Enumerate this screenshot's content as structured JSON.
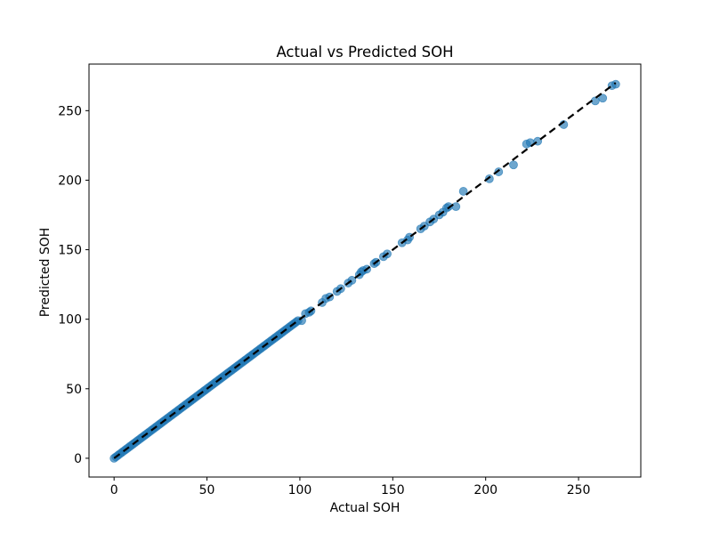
{
  "chart_data": {
    "type": "scatter",
    "title": "Actual vs Predicted SOH",
    "xlabel": "Actual SOH",
    "ylabel": "Predicted SOH",
    "xlim": [
      -13.5,
      283.5
    ],
    "ylim": [
      -13.5,
      283.5
    ],
    "xticks": [
      0,
      50,
      100,
      150,
      200,
      250
    ],
    "yticks": [
      0,
      50,
      100,
      150,
      200,
      250
    ],
    "grid": false,
    "series": [
      {
        "marker_color": "#1f77b4",
        "x": [
          0,
          1,
          2,
          3,
          4,
          5,
          6,
          7,
          8,
          9,
          10,
          11,
          12,
          13,
          14,
          15,
          16,
          17,
          18,
          19,
          20,
          21,
          22,
          23,
          24,
          25,
          26,
          27,
          28,
          29,
          30,
          31,
          32,
          33,
          34,
          35,
          36,
          37,
          38,
          39,
          40,
          41,
          42,
          43,
          44,
          45,
          46,
          47,
          48,
          49,
          50,
          51,
          52,
          53,
          54,
          55,
          56,
          57,
          58,
          59,
          60,
          61,
          62,
          63,
          64,
          65,
          66,
          67,
          68,
          69,
          70,
          71,
          72,
          73,
          74,
          75,
          76,
          77,
          78,
          79,
          80,
          81,
          82,
          83,
          84,
          85,
          86,
          87,
          88,
          89,
          90,
          91,
          92,
          93,
          94,
          95,
          96,
          97,
          98,
          99,
          101,
          103,
          105,
          106,
          112,
          114,
          116,
          120,
          122,
          126,
          128,
          132,
          133,
          134,
          136,
          140,
          141,
          145,
          147,
          155,
          158,
          159,
          165,
          167,
          170,
          172,
          175,
          177,
          179,
          180,
          184,
          188,
          202,
          207,
          215,
          222,
          224,
          228,
          242,
          259,
          263,
          268,
          270
        ],
        "y": [
          0,
          1,
          2,
          3,
          4,
          5,
          6,
          7,
          8,
          9,
          10,
          11,
          12,
          13,
          14,
          15,
          16,
          17,
          18,
          19,
          20,
          21,
          22,
          23,
          24,
          25,
          26,
          27,
          28,
          29,
          30,
          31,
          32,
          33,
          34,
          35,
          36,
          37,
          38,
          39,
          40,
          41,
          42,
          43,
          44,
          45,
          46,
          47,
          48,
          49,
          50,
          51,
          52,
          53,
          54,
          55,
          56,
          57,
          58,
          59,
          60,
          61,
          62,
          63,
          64,
          65,
          66,
          67,
          68,
          69,
          70,
          71,
          72,
          73,
          74,
          75,
          76,
          77,
          78,
          79,
          80,
          81,
          82,
          83,
          84,
          85,
          86,
          87,
          88,
          89,
          90,
          91,
          92,
          93,
          94,
          95,
          96,
          97,
          98,
          99,
          99,
          104,
          105,
          106,
          112,
          115,
          116,
          120,
          122,
          126,
          128,
          132,
          134,
          135,
          136,
          140,
          141,
          145,
          147,
          155,
          157,
          159,
          165,
          167,
          170,
          172,
          175,
          177,
          180,
          181,
          181,
          192,
          201,
          206,
          211,
          226,
          227,
          228,
          240,
          257,
          259,
          268,
          269
        ]
      }
    ],
    "reference_line": {
      "x": [
        0,
        270
      ],
      "y": [
        0,
        270
      ],
      "style": "dashed",
      "color": "#000000"
    }
  }
}
